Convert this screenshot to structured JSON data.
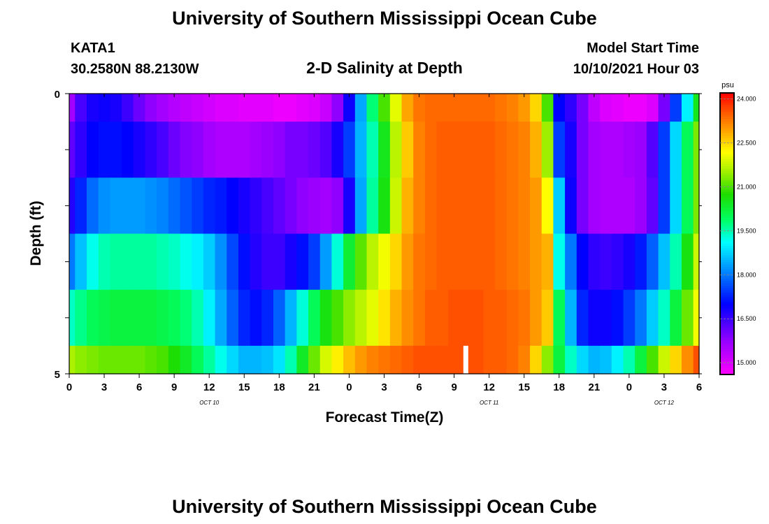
{
  "header": {
    "title": "University of Southern Mississippi Ocean Cube",
    "station_id": "KATA1",
    "station_coords": "30.2580N  88.2130W",
    "model_start_label": "Model Start Time",
    "model_start_value": "10/10/2021 Hour 03",
    "footer_title": "University of Southern Mississippi Ocean Cube"
  },
  "chart_data": {
    "type": "heatmap",
    "title": "2-D Salinity at Depth",
    "xlabel": "Forecast Time(Z)",
    "ylabel": "Depth (ft)",
    "x_ticks": [
      "0",
      "3",
      "6",
      "9",
      "12",
      "15",
      "18",
      "21",
      "0",
      "3",
      "6",
      "9",
      "12",
      "15",
      "18",
      "21",
      "0",
      "3",
      "6"
    ],
    "x_hours": [
      0,
      3,
      6,
      9,
      12,
      15,
      18,
      21,
      24,
      27,
      30,
      33,
      36,
      39,
      42,
      45,
      48,
      51,
      54
    ],
    "xlim": [
      0,
      54
    ],
    "date_labels": [
      {
        "text": "OCT  10",
        "hour": 12
      },
      {
        "text": "OCT  11",
        "hour": 36
      },
      {
        "text": "OCT  12",
        "hour": 51
      }
    ],
    "y_tick_labels": [
      "0",
      "5"
    ],
    "ylim": [
      0,
      5
    ],
    "depth_layers": [
      {
        "top": 0.0,
        "bottom": 0.5
      },
      {
        "top": 0.5,
        "bottom": 1.5
      },
      {
        "top": 1.5,
        "bottom": 2.5
      },
      {
        "top": 2.5,
        "bottom": 3.5
      },
      {
        "top": 3.5,
        "bottom": 4.5
      },
      {
        "top": 4.5,
        "bottom": 5.0
      }
    ],
    "time_hours": [
      0,
      1,
      2,
      3,
      4,
      5,
      6,
      7,
      8,
      9,
      10,
      11,
      12,
      13,
      14,
      15,
      16,
      17,
      18,
      19,
      20,
      21,
      22,
      23,
      24,
      25,
      26,
      27,
      28,
      29,
      30,
      31,
      32,
      33,
      34,
      35,
      36,
      37,
      38,
      39,
      40,
      41,
      42,
      43,
      44,
      45,
      46,
      47,
      48,
      49,
      50,
      51,
      52,
      53,
      54
    ],
    "salinity": [
      [
        15.6,
        16.4,
        16.8,
        16.9,
        16.8,
        16.5,
        16.1,
        15.8,
        15.6,
        15.4,
        15.3,
        15.2,
        15.1,
        15.0,
        15.0,
        14.9,
        14.9,
        14.9,
        14.8,
        14.8,
        14.9,
        15.0,
        15.2,
        15.8,
        16.9,
        18.4,
        19.8,
        21.0,
        22.0,
        22.9,
        23.3,
        23.4,
        23.4,
        23.4,
        23.4,
        23.4,
        23.4,
        23.3,
        23.2,
        23.0,
        22.5,
        21.0,
        17.0,
        16.6,
        16.0,
        15.3,
        15.0,
        14.9,
        14.8,
        14.8,
        15.0,
        16.0,
        17.5,
        19.0,
        20.5
      ],
      [
        16.2,
        16.6,
        17.0,
        17.1,
        17.1,
        17.0,
        16.8,
        16.6,
        16.4,
        16.1,
        15.9,
        15.8,
        15.6,
        15.5,
        15.5,
        15.5,
        15.6,
        15.7,
        15.8,
        16.0,
        16.0,
        16.1,
        16.3,
        16.8,
        17.5,
        18.5,
        19.5,
        20.5,
        21.7,
        22.6,
        23.2,
        23.4,
        23.5,
        23.5,
        23.5,
        23.5,
        23.5,
        23.4,
        23.3,
        23.2,
        22.8,
        21.5,
        17.5,
        16.8,
        16.0,
        15.6,
        15.5,
        15.5,
        15.6,
        15.7,
        16.3,
        17.5,
        18.8,
        20.0,
        21.3
      ],
      [
        16.7,
        17.3,
        17.9,
        18.2,
        18.3,
        18.3,
        18.3,
        18.2,
        18.1,
        17.9,
        17.7,
        17.5,
        17.3,
        17.2,
        17.0,
        16.8,
        16.6,
        16.4,
        16.2,
        16.0,
        15.8,
        15.7,
        15.6,
        15.8,
        16.8,
        18.4,
        19.6,
        20.6,
        21.8,
        22.8,
        23.2,
        23.4,
        23.5,
        23.5,
        23.5,
        23.5,
        23.5,
        23.4,
        23.3,
        23.2,
        23.0,
        22.2,
        18.7,
        16.9,
        16.0,
        15.6,
        15.5,
        15.5,
        15.5,
        15.7,
        16.2,
        17.5,
        18.8,
        20.0,
        21.3
      ],
      [
        18.0,
        18.6,
        19.2,
        19.5,
        19.6,
        19.6,
        19.6,
        19.6,
        19.5,
        19.4,
        19.2,
        19.0,
        18.7,
        18.2,
        17.6,
        17.1,
        16.7,
        16.5,
        16.5,
        16.8,
        17.1,
        17.5,
        18.3,
        19.3,
        20.3,
        21.1,
        21.7,
        22.1,
        22.5,
        23.0,
        23.3,
        23.4,
        23.5,
        23.5,
        23.5,
        23.5,
        23.5,
        23.4,
        23.3,
        23.2,
        23.0,
        22.8,
        19.2,
        18.0,
        17.0,
        16.6,
        16.5,
        16.6,
        16.8,
        17.2,
        17.8,
        18.6,
        19.5,
        20.6,
        21.8
      ],
      [
        19.4,
        19.7,
        20.0,
        20.1,
        20.2,
        20.2,
        20.2,
        20.2,
        20.1,
        20.0,
        19.8,
        19.5,
        19.0,
        18.4,
        17.8,
        17.3,
        17.1,
        17.3,
        17.8,
        18.5,
        19.3,
        20.0,
        20.6,
        21.0,
        21.4,
        21.7,
        22.0,
        22.4,
        22.8,
        23.1,
        23.3,
        23.5,
        23.5,
        23.6,
        23.6,
        23.6,
        23.5,
        23.5,
        23.4,
        23.3,
        23.0,
        22.6,
        20.0,
        18.5,
        17.3,
        16.9,
        16.9,
        17.1,
        17.5,
        18.0,
        18.7,
        19.4,
        20.2,
        21.2,
        22.1
      ],
      [
        21.6,
        21.4,
        21.3,
        21.2,
        21.2,
        21.2,
        21.2,
        21.1,
        21.0,
        20.7,
        20.4,
        20.0,
        19.6,
        19.2,
        18.8,
        18.5,
        18.5,
        18.6,
        18.9,
        19.5,
        20.4,
        21.2,
        21.9,
        22.3,
        22.7,
        23.0,
        23.2,
        23.3,
        23.4,
        23.5,
        23.6,
        23.6,
        23.6,
        23.6,
        23.6,
        23.6,
        23.5,
        23.5,
        23.4,
        23.2,
        22.5,
        21.4,
        20.2,
        19.4,
        18.8,
        18.5,
        18.6,
        19.0,
        19.5,
        20.2,
        21.0,
        21.8,
        22.5,
        23.1,
        23.6
      ]
    ],
    "colorbar": {
      "unit": "psu",
      "min": 14.6,
      "max": 24.2,
      "tick_values": [
        15.0,
        16.5,
        18.0,
        19.5,
        21.0,
        22.5,
        24.0
      ],
      "tick_labels": [
        "15.000",
        "16.500",
        "18.000",
        "19.500",
        "21.000",
        "22.500",
        "24.000"
      ]
    },
    "marker": {
      "hour": 34,
      "depth_top": 4.5,
      "depth_bottom": 5.0,
      "color": "#ffffff"
    },
    "colors": {
      "frame": "#000000",
      "tick_mark": "#333333"
    }
  }
}
